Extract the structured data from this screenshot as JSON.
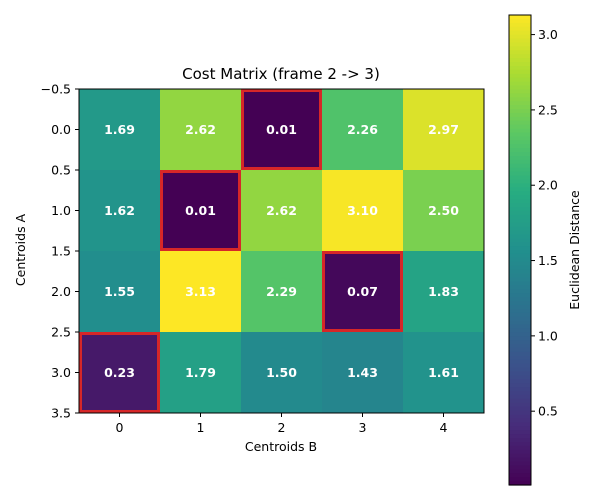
{
  "chart_data": {
    "type": "heatmap",
    "title": "Cost Matrix (frame 2 -> 3)",
    "xlabel": "Centroids B",
    "ylabel": "Centroids A",
    "x_ticks": [
      "0",
      "1",
      "2",
      "3",
      "4"
    ],
    "y_ticks": [
      "−0.5",
      "0.0",
      "0.5",
      "1.0",
      "1.5",
      "2.0",
      "2.5",
      "3.0",
      "3.5"
    ],
    "values": [
      [
        1.69,
        2.62,
        0.01,
        2.26,
        2.97
      ],
      [
        1.62,
        0.01,
        2.62,
        3.1,
        2.5
      ],
      [
        1.55,
        3.13,
        2.29,
        0.07,
        1.83
      ],
      [
        0.23,
        1.79,
        1.5,
        1.43,
        1.61
      ]
    ],
    "value_labels": [
      [
        "1.69",
        "2.62",
        "0.01",
        "2.26",
        "2.97"
      ],
      [
        "1.62",
        "0.01",
        "2.62",
        "3.10",
        "2.50"
      ],
      [
        "1.55",
        "3.13",
        "2.29",
        "0.07",
        "1.83"
      ],
      [
        "0.23",
        "1.79",
        "1.50",
        "1.43",
        "1.61"
      ]
    ],
    "highlighted_cells": [
      [
        0,
        2
      ],
      [
        1,
        1
      ],
      [
        2,
        3
      ],
      [
        3,
        0
      ]
    ],
    "highlight_color": "#d62728",
    "value_range": [
      0.01,
      3.13
    ],
    "colormap": "viridis",
    "colorbar": {
      "label": "Euclidean Distance",
      "ticks": [
        0.5,
        1.0,
        1.5,
        2.0,
        2.5,
        3.0
      ],
      "tick_labels": [
        "0.5",
        "1.0",
        "1.5",
        "2.0",
        "2.5",
        "3.0"
      ]
    }
  }
}
